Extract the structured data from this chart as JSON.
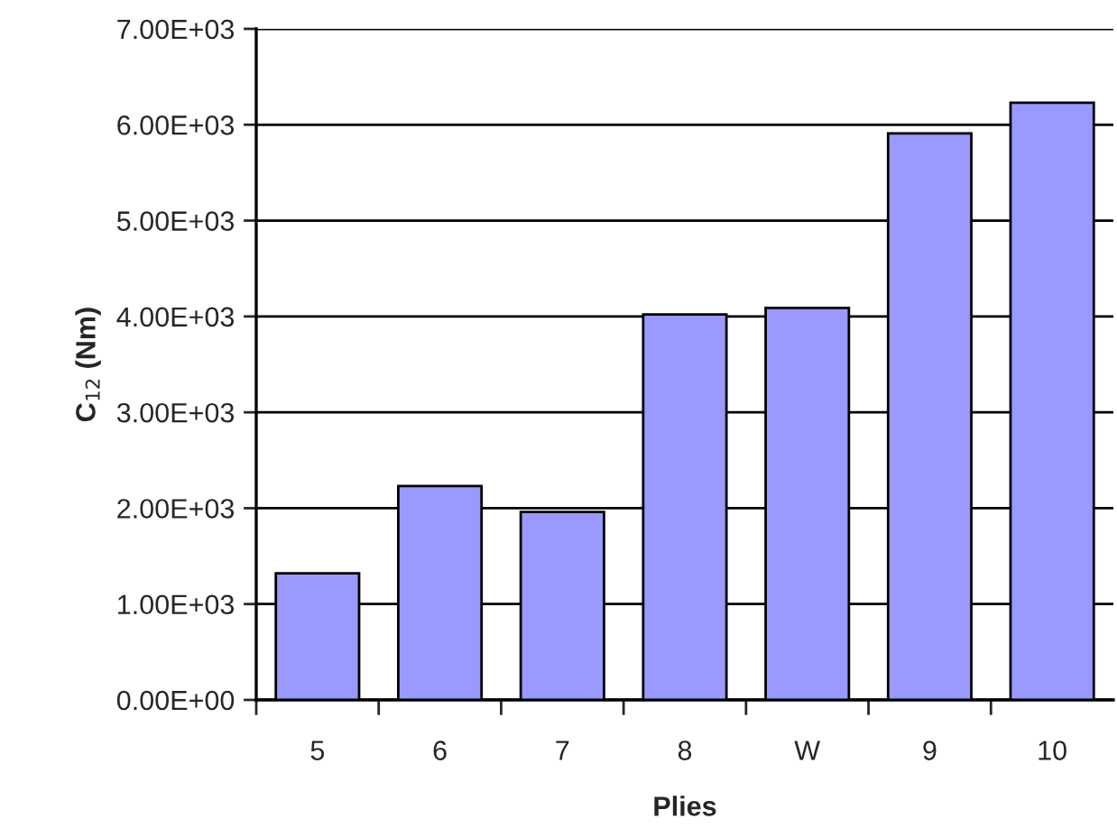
{
  "chart_data": {
    "type": "bar",
    "xlabel": "Plies",
    "ylabel": "C$_{12}$ (Nm)",
    "categories": [
      "5",
      "6",
      "7",
      "8",
      "W",
      "9",
      "10"
    ],
    "values": [
      1320,
      2230,
      1960,
      4020,
      4090,
      5910,
      6230
    ],
    "color": "#9999ff",
    "ylim": [
      0,
      7000
    ],
    "yticks": [
      {
        "value": 0,
        "label": "0.00E+00"
      },
      {
        "value": 1000,
        "label": "1.00E+03"
      },
      {
        "value": 2000,
        "label": "2.00E+03"
      },
      {
        "value": 3000,
        "label": "3.00E+03"
      },
      {
        "value": 4000,
        "label": "4.00E+03"
      },
      {
        "value": 5000,
        "label": "5.00E+03"
      },
      {
        "value": 6000,
        "label": "6.00E+03"
      },
      {
        "value": 7000,
        "label": "7.00E+03"
      }
    ],
    "grid": "y"
  }
}
